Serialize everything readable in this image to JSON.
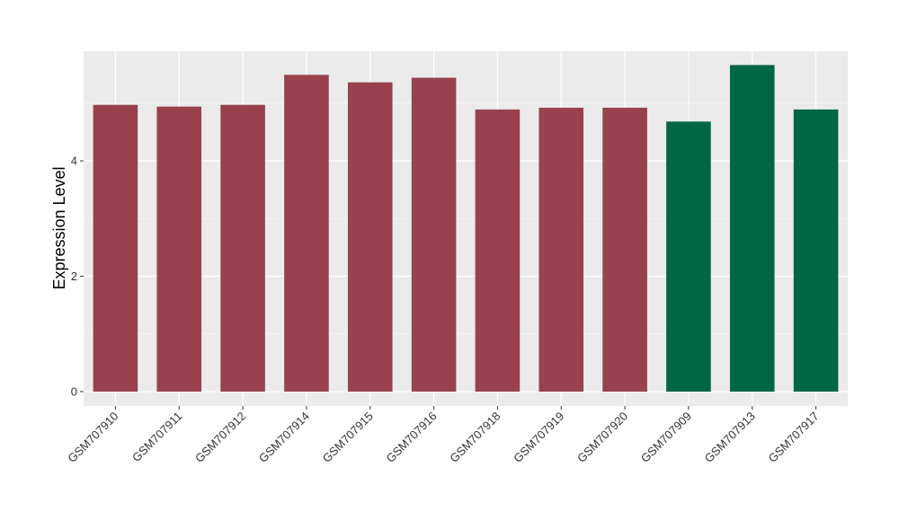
{
  "chart_data": {
    "type": "bar",
    "ylabel": "Expression Level",
    "xlabel": "",
    "ylim": [
      -0.25,
      5.9
    ],
    "yticks": [
      0,
      2,
      4
    ],
    "grid": true,
    "panel_background": "#EBEBEB",
    "categories": [
      "GSM707910",
      "GSM707911",
      "GSM707912",
      "GSM707914",
      "GSM707915",
      "GSM707916",
      "GSM707918",
      "GSM707919",
      "GSM707920",
      "GSM707909",
      "GSM707913",
      "GSM707917"
    ],
    "values": [
      4.97,
      4.94,
      4.97,
      5.49,
      5.36,
      5.44,
      4.89,
      4.92,
      4.92,
      4.68,
      5.66,
      4.89
    ],
    "bar_colors": [
      "#99414F",
      "#99414F",
      "#99414F",
      "#99414F",
      "#99414F",
      "#99414F",
      "#99414F",
      "#99414F",
      "#99414F",
      "#006644",
      "#006644",
      "#006644"
    ]
  }
}
